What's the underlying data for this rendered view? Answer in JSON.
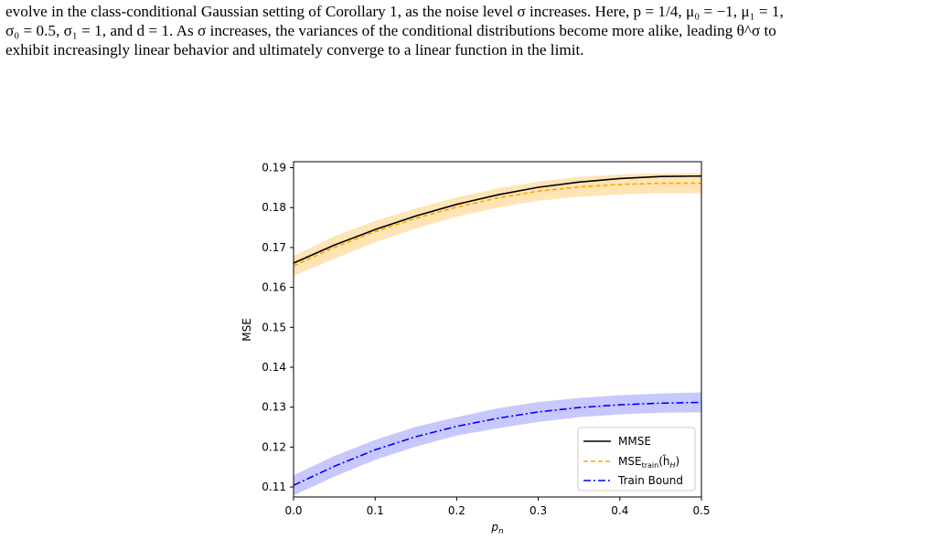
{
  "caption": {
    "line1": "evolve in the class-conditional Gaussian setting of Corollary 1, as the noise level σ increases. Here, p = 1/4, μ₀ = −1, μ₁ = 1,",
    "line2": "σ₀ = 0.5, σ₁ = 1, and d = 1. As σ increases, the variances of the conditional distributions become more alike, leading θ^σ to",
    "line3": "exhibit increasingly linear behavior and ultimately converge to a linear function in the limit."
  },
  "chart_data": {
    "type": "line",
    "xlabel": "p_n",
    "ylabel": "MSE",
    "xlim": [
      0.0,
      0.5
    ],
    "ylim": [
      0.1075,
      0.1915
    ],
    "xticks": [
      "0.0",
      "0.1",
      "0.2",
      "0.3",
      "0.4",
      "0.5"
    ],
    "yticks": [
      "0.11",
      "0.12",
      "0.13",
      "0.14",
      "0.15",
      "0.16",
      "0.17",
      "0.18",
      "0.19"
    ],
    "grid": false,
    "legend_position": "lower right",
    "x": [
      0.0,
      0.05,
      0.1,
      0.15,
      0.2,
      0.25,
      0.3,
      0.35,
      0.4,
      0.45,
      0.5
    ],
    "series": [
      {
        "name": "MMSE",
        "color": "#000000",
        "dash": "solid",
        "values": [
          0.1661,
          0.1706,
          0.1745,
          0.1779,
          0.1808,
          0.1832,
          0.1851,
          0.1864,
          0.1873,
          0.1878,
          0.1879
        ],
        "band": null
      },
      {
        "name": "MSE_train(ĥ_H)",
        "color": "#ffa500",
        "dash": "dashed",
        "values": [
          0.1654,
          0.17,
          0.174,
          0.1773,
          0.1801,
          0.1824,
          0.1841,
          0.1852,
          0.1858,
          0.1861,
          0.1861
        ],
        "band": [
          0.0025,
          0.0028,
          0.0027,
          0.0025,
          0.0024,
          0.0024,
          0.0024,
          0.0025,
          0.0025,
          0.0025,
          0.0025
        ],
        "band_color": "#ffe4b5"
      },
      {
        "name": "Train Bound",
        "color": "#0000ff",
        "dash": "dashdot",
        "values": [
          0.1104,
          0.1152,
          0.1193,
          0.1226,
          0.1252,
          0.1272,
          0.1288,
          0.1299,
          0.1306,
          0.131,
          0.1312
        ],
        "band": [
          0.0025,
          0.0026,
          0.0025,
          0.0025,
          0.0023,
          0.0025,
          0.0025,
          0.0024,
          0.0024,
          0.0024,
          0.0025
        ],
        "band_color": "#c8c8ff"
      }
    ],
    "legend": {
      "mmse": "MMSE",
      "msetrain_main": "MSE",
      "msetrain_sub": "train",
      "msetrain_arg": "(ĥ",
      "msetrain_argsub": "H",
      "msetrain_close": ")",
      "bound": "Train Bound"
    }
  }
}
